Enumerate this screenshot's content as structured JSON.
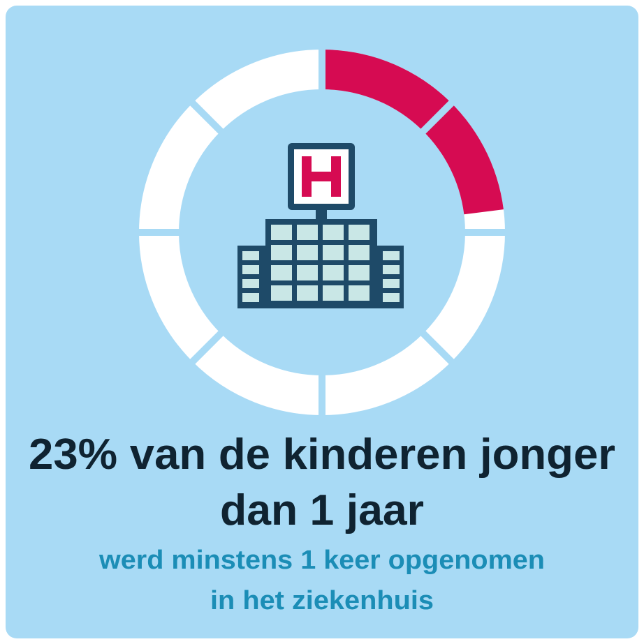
{
  "chart_data": {
    "type": "donut",
    "value": 23,
    "range": [
      0,
      100
    ],
    "color": "#d60b52",
    "title": [
      "23% van de kinderen jonger",
      "dan 1 jaar"
    ],
    "subtitle": [
      "werd minstens 1 keer opgenomen",
      "in het ziekenhuis"
    ]
  }
}
